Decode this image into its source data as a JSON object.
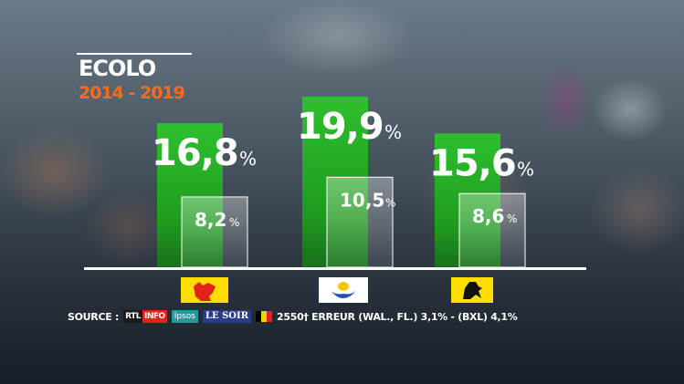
{
  "chart_data": {
    "type": "bar",
    "title": "ECOLO",
    "subtitle": "2014 - 2019",
    "categories": [
      "Wallonie",
      "Bruxelles",
      "Flandre"
    ],
    "series": [
      {
        "values": [
          16.8,
          19.9,
          15.6
        ],
        "labels": [
          "16,8",
          "19,9",
          "15,6"
        ],
        "color": "#2ec02e"
      },
      {
        "values": [
          8.2,
          10.5,
          8.6
        ],
        "labels": [
          "8,2",
          "10,5",
          "8,6"
        ],
        "color": "#ffffff"
      }
    ],
    "unit": "%",
    "ylim": [
      0,
      20
    ],
    "grid": false,
    "category_icons": [
      "wallonia-rooster-flag-icon",
      "brussels-iris-flag-icon",
      "flanders-lion-flag-icon"
    ]
  },
  "source": {
    "label": "SOURCE :",
    "logos": [
      {
        "part1": "RTL",
        "part2": "INFO"
      },
      {
        "text": "Ipsos"
      },
      {
        "text": "LE SOIR"
      }
    ],
    "details": "2550† ERREUR (WAL., FL.) 3,1% - (BXL) 4,1%"
  },
  "colors": {
    "bar_green": "#2ec02e",
    "subtitle_orange": "#ff6a1a",
    "flag_yellow": "#ffdd00",
    "flag_red": "#e2231a",
    "brussels_blue": "#1f4fb4"
  }
}
